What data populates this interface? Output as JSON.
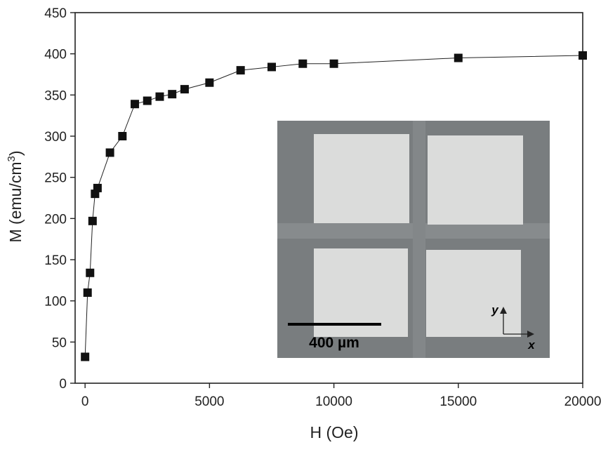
{
  "chart_data": {
    "type": "line",
    "title": "",
    "xlabel": "H (Oe)",
    "ylabel_main": "M (emu/cm",
    "ylabel_sup": "3",
    "ylabel_close": ")",
    "xlim": [
      -400,
      20000
    ],
    "ylim": [
      0,
      450
    ],
    "xticks": [
      0,
      5000,
      10000,
      15000,
      20000
    ],
    "yticks": [
      0,
      50,
      100,
      150,
      200,
      250,
      300,
      350,
      400,
      450
    ],
    "grid": false,
    "marker": "square",
    "series": [
      {
        "x": [
          0,
          100,
          200,
          300,
          400,
          500,
          1000,
          1500,
          2000,
          2500,
          3000,
          3500,
          4000,
          5000,
          6250,
          7500,
          8750,
          10000,
          15000,
          20000
        ],
        "y": [
          32,
          110,
          134,
          197,
          230,
          237,
          280,
          300,
          339,
          343,
          348,
          351,
          357,
          365,
          380,
          384,
          388,
          388,
          395,
          398
        ]
      }
    ],
    "inset": {
      "type": "micrograph",
      "scale_bar_label": "400 µm",
      "axis_x_label": "x",
      "axis_y_label": "y"
    }
  }
}
